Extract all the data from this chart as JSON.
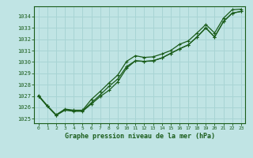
{
  "title": "Graphe pression niveau de la mer (hPa)",
  "bg_color": "#c0e4e4",
  "grid_color": "#a8d4d4",
  "line_color": "#1a5c1a",
  "xlabel_color": "#1a5c1a",
  "ylim": [
    1024.6,
    1034.9
  ],
  "xlim": [
    -0.5,
    23.5
  ],
  "yticks": [
    1025,
    1026,
    1027,
    1028,
    1029,
    1030,
    1031,
    1032,
    1033,
    1034
  ],
  "xticks": [
    0,
    1,
    2,
    3,
    4,
    5,
    6,
    7,
    8,
    9,
    10,
    11,
    12,
    13,
    14,
    15,
    16,
    17,
    18,
    19,
    20,
    21,
    22,
    23
  ],
  "series1_x": [
    0,
    1,
    2,
    3,
    4,
    5,
    6,
    7,
    8,
    9,
    10,
    11,
    12,
    13,
    14,
    15,
    16,
    17,
    18,
    19,
    20,
    21,
    22,
    23
  ],
  "series1_y": [
    1027.0,
    1026.1,
    1025.3,
    1025.8,
    1025.7,
    1025.7,
    1026.4,
    1027.1,
    1027.85,
    1028.5,
    1029.6,
    1030.1,
    1030.05,
    1030.1,
    1030.35,
    1030.75,
    1031.15,
    1031.5,
    1032.2,
    1033.0,
    1032.2,
    1033.55,
    1034.3,
    1034.45
  ],
  "series2_x": [
    0,
    1,
    2,
    3,
    4,
    5,
    6,
    7,
    8,
    9,
    10,
    11,
    12,
    13,
    14,
    15,
    16,
    17,
    18,
    19,
    20,
    21,
    22,
    23
  ],
  "series2_y": [
    1027.0,
    1026.1,
    1025.3,
    1025.75,
    1025.65,
    1025.65,
    1026.3,
    1026.95,
    1027.5,
    1028.25,
    1029.45,
    1030.1,
    1030.05,
    1030.1,
    1030.35,
    1030.75,
    1031.15,
    1031.5,
    1032.2,
    1033.0,
    1032.2,
    1033.55,
    1034.3,
    1034.45
  ],
  "series3_x": [
    0,
    1,
    2,
    3,
    4,
    5,
    6,
    7,
    8,
    9,
    10,
    11,
    12,
    13,
    14,
    15,
    16,
    17,
    18,
    19,
    20,
    21,
    22,
    23
  ],
  "series3_y": [
    1027.05,
    1026.15,
    1025.35,
    1025.85,
    1025.75,
    1025.75,
    1026.7,
    1027.4,
    1028.15,
    1028.85,
    1030.05,
    1030.55,
    1030.4,
    1030.45,
    1030.7,
    1031.0,
    1031.55,
    1031.85,
    1032.55,
    1033.3,
    1032.55,
    1033.85,
    1034.6,
    1034.65
  ]
}
